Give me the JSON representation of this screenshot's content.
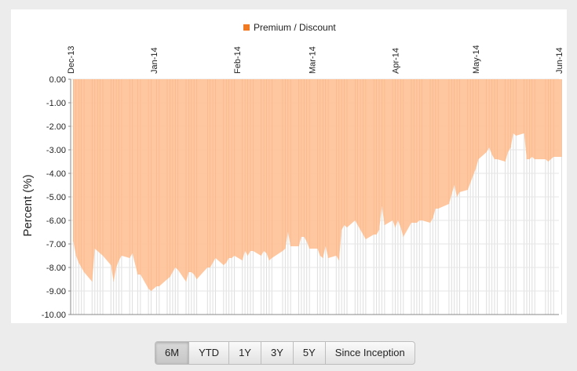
{
  "chart_data": {
    "type": "area",
    "legend": {
      "label": "Premium / Discount",
      "color": "#f07a24",
      "placement": "top-center"
    },
    "ylabel": "Percent (%)",
    "xlabel": "",
    "ylim": [
      -10,
      0
    ],
    "yticks": [
      "0.00",
      "-1.00",
      "-2.00",
      "-3.00",
      "-4.00",
      "-5.00",
      "-6.00",
      "-7.00",
      "-8.00",
      "-9.00",
      "-10.00"
    ],
    "xticks": [
      {
        "label": "Dec-13",
        "date": "2013-12-01"
      },
      {
        "label": "Jan-14",
        "date": "2014-01-01"
      },
      {
        "label": "Feb-14",
        "date": "2014-02-01"
      },
      {
        "label": "Mar-14",
        "date": "2014-03-01"
      },
      {
        "label": "Apr-14",
        "date": "2014-04-01"
      },
      {
        "label": "May-14",
        "date": "2014-05-01"
      },
      {
        "label": "Jun-14",
        "date": "2014-06-01"
      }
    ],
    "fill_color": "#ffc49a",
    "grid": true,
    "x": [
      "2013-12-02",
      "2013-12-03",
      "2013-12-04",
      "2013-12-05",
      "2013-12-06",
      "2013-12-09",
      "2013-12-10",
      "2013-12-11",
      "2013-12-12",
      "2013-12-13",
      "2013-12-16",
      "2013-12-17",
      "2013-12-18",
      "2013-12-19",
      "2013-12-20",
      "2013-12-23",
      "2013-12-24",
      "2013-12-26",
      "2013-12-27",
      "2013-12-30",
      "2013-12-31",
      "2014-01-02",
      "2014-01-03",
      "2014-01-06",
      "2014-01-07",
      "2014-01-08",
      "2014-01-09",
      "2014-01-10",
      "2014-01-13",
      "2014-01-14",
      "2014-01-15",
      "2014-01-16",
      "2014-01-17",
      "2014-01-21",
      "2014-01-22",
      "2014-01-23",
      "2014-01-24",
      "2014-01-27",
      "2014-01-28",
      "2014-01-29",
      "2014-01-30",
      "2014-01-31",
      "2014-02-03",
      "2014-02-04",
      "2014-02-05",
      "2014-02-06",
      "2014-02-07",
      "2014-02-10",
      "2014-02-11",
      "2014-02-12",
      "2014-02-13",
      "2014-02-14",
      "2014-02-18",
      "2014-02-19",
      "2014-02-20",
      "2014-02-21",
      "2014-02-24",
      "2014-02-25",
      "2014-02-26",
      "2014-02-27",
      "2014-02-28",
      "2014-03-03",
      "2014-03-04",
      "2014-03-05",
      "2014-03-06",
      "2014-03-07",
      "2014-03-10",
      "2014-03-11",
      "2014-03-12",
      "2014-03-13",
      "2014-03-14",
      "2014-03-17",
      "2014-03-18",
      "2014-03-19",
      "2014-03-20",
      "2014-03-21",
      "2014-03-24",
      "2014-03-25",
      "2014-03-26",
      "2014-03-27",
      "2014-03-28",
      "2014-03-31",
      "2014-04-01",
      "2014-04-02",
      "2014-04-03",
      "2014-04-04",
      "2014-04-07",
      "2014-04-08",
      "2014-04-09",
      "2014-04-10",
      "2014-04-11",
      "2014-04-14",
      "2014-04-15",
      "2014-04-16",
      "2014-04-17",
      "2014-04-21",
      "2014-04-22",
      "2014-04-23",
      "2014-04-24",
      "2014-04-25",
      "2014-04-28",
      "2014-04-29",
      "2014-04-30",
      "2014-05-01",
      "2014-05-02",
      "2014-05-05",
      "2014-05-06",
      "2014-05-07",
      "2014-05-08",
      "2014-05-09",
      "2014-05-12",
      "2014-05-13",
      "2014-05-14",
      "2014-05-15",
      "2014-05-16",
      "2014-05-19",
      "2014-05-20",
      "2014-05-21",
      "2014-05-22",
      "2014-05-23",
      "2014-05-27",
      "2014-05-28",
      "2014-05-29",
      "2014-05-30",
      "2014-06-02"
    ],
    "y": [
      -6.9,
      -7.5,
      -7.8,
      -8.0,
      -8.2,
      -8.6,
      -7.2,
      -7.3,
      -7.4,
      -7.5,
      -7.9,
      -8.6,
      -8.0,
      -7.7,
      -7.5,
      -7.6,
      -7.4,
      -8.3,
      -8.3,
      -8.9,
      -9.0,
      -8.8,
      -8.8,
      -8.5,
      -8.4,
      -8.2,
      -8.0,
      -8.1,
      -8.6,
      -8.2,
      -8.2,
      -8.3,
      -8.5,
      -8.0,
      -8.0,
      -7.8,
      -7.6,
      -7.9,
      -7.8,
      -7.6,
      -7.6,
      -7.5,
      -7.7,
      -7.3,
      -7.5,
      -7.3,
      -7.3,
      -7.5,
      -7.3,
      -7.4,
      -7.7,
      -7.6,
      -7.3,
      -7.2,
      -6.5,
      -7.1,
      -7.1,
      -6.7,
      -6.7,
      -6.9,
      -7.2,
      -7.2,
      -7.5,
      -7.6,
      -7.1,
      -7.6,
      -7.5,
      -7.7,
      -6.4,
      -6.2,
      -6.3,
      -6.0,
      -6.2,
      -6.4,
      -6.6,
      -6.8,
      -6.6,
      -6.6,
      -6.4,
      -5.4,
      -6.2,
      -6.0,
      -6.3,
      -6.0,
      -6.3,
      -6.7,
      -6.1,
      -6.1,
      -6.1,
      -6.0,
      -6.0,
      -6.1,
      -5.9,
      -5.5,
      -5.5,
      -5.3,
      -4.9,
      -4.5,
      -5.0,
      -4.8,
      -4.7,
      -4.4,
      -4.1,
      -3.8,
      -3.4,
      -3.1,
      -2.9,
      -3.2,
      -3.4,
      -3.4,
      -3.5,
      -3.1,
      -2.9,
      -2.3,
      -2.4,
      -2.3,
      -3.4,
      -3.4,
      -3.3,
      -3.4,
      -3.4,
      -3.5,
      -3.4,
      -3.3,
      -3.3
    ]
  },
  "range_buttons": [
    "6M",
    "YTD",
    "1Y",
    "3Y",
    "5Y",
    "Since Inception"
  ],
  "active_range": "6M"
}
